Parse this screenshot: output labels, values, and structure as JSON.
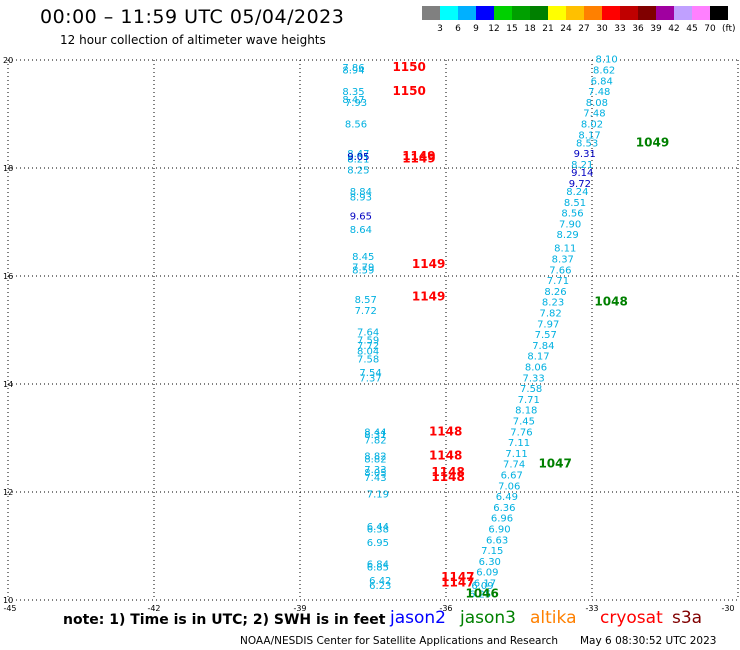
{
  "title": "00:00 – 11:59 UTC 05/04/2023",
  "subtitle": "12 hour collection of altimeter wave heights",
  "legend": {
    "labels": [
      "3",
      "6",
      "9",
      "12",
      "15",
      "18",
      "21",
      "24",
      "27",
      "30",
      "33",
      "36",
      "39",
      "42",
      "45",
      "70",
      "(ft)"
    ],
    "colors": [
      "#808080",
      "#00ffff",
      "#00b0ff",
      "#0000ff",
      "#00d000",
      "#00a000",
      "#008000",
      "#ffff00",
      "#ffc000",
      "#ff8000",
      "#ff0000",
      "#c00000",
      "#800000",
      "#a000a0",
      "#c0a0ff",
      "#ff80ff",
      "#000000"
    ]
  },
  "axes": {
    "x_ticks": [
      "-45",
      "-42",
      "-39",
      "-36",
      "-33",
      "-30"
    ],
    "y_ticks": [
      "10",
      "12",
      "14",
      "16",
      "18",
      "20"
    ]
  },
  "note": "note: 1) Time is in UTC; 2) SWH is in feet",
  "satellites": [
    {
      "name": "jason2",
      "color": "#0000ff"
    },
    {
      "name": "jason3",
      "color": "#008000"
    },
    {
      "name": "altika",
      "color": "#ff8000"
    },
    {
      "name": "cryosat",
      "color": "#ff0000"
    },
    {
      "name": "s3a",
      "color": "#800000"
    }
  ],
  "credit": "NOAA/NESDIS Center for Satellite Applications and Research",
  "generated": "May  6 08:30:52 UTC 2023",
  "tracks": {
    "west": {
      "color": "#00b0e0",
      "points": [
        {
          "lon": -37.9,
          "lat": 19.8,
          "v": "7.86"
        },
        {
          "lon": -37.9,
          "lat": 19.75,
          "v": "8.94"
        },
        {
          "lon": -37.9,
          "lat": 19.35,
          "v": "8.35"
        },
        {
          "lon": -37.9,
          "lat": 19.2,
          "v": "8.47"
        },
        {
          "lon": -37.85,
          "lat": 19.15,
          "v": "7.93"
        },
        {
          "lon": -37.85,
          "lat": 18.75,
          "v": "8.56"
        },
        {
          "lon": -37.8,
          "lat": 18.2,
          "v": "8.47"
        },
        {
          "lon": -37.8,
          "lat": 18.15,
          "v": "8.05"
        },
        {
          "lon": -37.8,
          "lat": 18.1,
          "v": "8.21"
        },
        {
          "lon": -37.8,
          "lat": 17.9,
          "v": "8.25"
        },
        {
          "lon": -37.75,
          "lat": 17.5,
          "v": "8.84"
        },
        {
          "lon": -37.75,
          "lat": 17.4,
          "v": "8.93"
        },
        {
          "lon": -37.75,
          "lat": 16.8,
          "v": "8.64"
        },
        {
          "lon": -37.7,
          "lat": 16.3,
          "v": "8.45"
        },
        {
          "lon": -37.7,
          "lat": 16.1,
          "v": "7.79"
        },
        {
          "lon": -37.7,
          "lat": 16.05,
          "v": "8.59"
        },
        {
          "lon": -37.65,
          "lat": 15.5,
          "v": "8.57"
        },
        {
          "lon": -37.65,
          "lat": 15.3,
          "v": "7.72"
        },
        {
          "lon": -37.6,
          "lat": 14.9,
          "v": "7.64"
        },
        {
          "lon": -37.6,
          "lat": 14.75,
          "v": "7.59"
        },
        {
          "lon": -37.6,
          "lat": 14.65,
          "v": "7.72"
        },
        {
          "lon": -37.6,
          "lat": 14.55,
          "v": "8.04"
        },
        {
          "lon": -37.6,
          "lat": 14.4,
          "v": "7.58"
        },
        {
          "lon": -37.55,
          "lat": 14.15,
          "v": "7.54"
        },
        {
          "lon": -37.55,
          "lat": 14.05,
          "v": "7.37"
        },
        {
          "lon": -37.45,
          "lat": 13.05,
          "v": "8.44"
        },
        {
          "lon": -37.45,
          "lat": 13.0,
          "v": "8.31"
        },
        {
          "lon": -37.45,
          "lat": 12.9,
          "v": "7.82"
        },
        {
          "lon": -37.45,
          "lat": 12.6,
          "v": "8.82"
        },
        {
          "lon": -37.45,
          "lat": 12.55,
          "v": "8.82"
        },
        {
          "lon": -37.45,
          "lat": 12.35,
          "v": "7.33"
        },
        {
          "lon": -37.45,
          "lat": 12.3,
          "v": "8.05"
        },
        {
          "lon": -37.45,
          "lat": 12.2,
          "v": "7.43"
        },
        {
          "lon": -37.4,
          "lat": 11.9,
          "v": "7.19"
        },
        {
          "lon": -37.4,
          "lat": 11.3,
          "v": "6.44"
        },
        {
          "lon": -37.4,
          "lat": 11.25,
          "v": "6.38"
        },
        {
          "lon": -37.4,
          "lat": 11.0,
          "v": "6.95"
        },
        {
          "lon": -37.4,
          "lat": 10.6,
          "v": "6.84"
        },
        {
          "lon": -37.4,
          "lat": 10.55,
          "v": "6.85"
        },
        {
          "lon": -37.35,
          "lat": 10.3,
          "v": "6.42"
        },
        {
          "lon": -37.35,
          "lat": 10.2,
          "v": "6.23"
        }
      ]
    },
    "east": {
      "color": "#00b0e0",
      "points": [
        {
          "lon": -32.7,
          "lat": 19.95,
          "v": "8.10"
        },
        {
          "lon": -32.75,
          "lat": 19.75,
          "v": "8.62"
        },
        {
          "lon": -32.8,
          "lat": 19.55,
          "v": "6.84"
        },
        {
          "lon": -32.85,
          "lat": 19.35,
          "v": "7.48"
        },
        {
          "lon": -32.9,
          "lat": 19.15,
          "v": "8.08"
        },
        {
          "lon": -32.95,
          "lat": 18.95,
          "v": "7.48"
        },
        {
          "lon": -33.0,
          "lat": 18.75,
          "v": "8.02"
        },
        {
          "lon": -33.05,
          "lat": 18.55,
          "v": "8.17"
        },
        {
          "lon": -33.1,
          "lat": 18.4,
          "v": "8.53"
        },
        {
          "lon": -33.2,
          "lat": 18.0,
          "v": "8.21"
        },
        {
          "lon": -33.3,
          "lat": 17.5,
          "v": "8.24"
        },
        {
          "lon": -33.35,
          "lat": 17.3,
          "v": "8.51"
        },
        {
          "lon": -33.4,
          "lat": 17.1,
          "v": "8.56"
        },
        {
          "lon": -33.45,
          "lat": 16.9,
          "v": "7.90"
        },
        {
          "lon": -33.5,
          "lat": 16.7,
          "v": "8.29"
        },
        {
          "lon": -33.55,
          "lat": 16.45,
          "v": "8.11"
        },
        {
          "lon": -33.6,
          "lat": 16.25,
          "v": "8.37"
        },
        {
          "lon": -33.65,
          "lat": 16.05,
          "v": "7.66"
        },
        {
          "lon": -33.7,
          "lat": 15.85,
          "v": "7.71"
        },
        {
          "lon": -33.75,
          "lat": 15.65,
          "v": "8.26"
        },
        {
          "lon": -33.8,
          "lat": 15.45,
          "v": "8.23"
        },
        {
          "lon": -33.85,
          "lat": 15.25,
          "v": "7.82"
        },
        {
          "lon": -33.9,
          "lat": 15.05,
          "v": "7.97"
        },
        {
          "lon": -33.95,
          "lat": 14.85,
          "v": "7.57"
        },
        {
          "lon": -34.0,
          "lat": 14.65,
          "v": "7.84"
        },
        {
          "lon": -34.1,
          "lat": 14.45,
          "v": "8.17"
        },
        {
          "lon": -34.15,
          "lat": 14.25,
          "v": "8.06"
        },
        {
          "lon": -34.2,
          "lat": 14.05,
          "v": "7.33"
        },
        {
          "lon": -34.25,
          "lat": 13.85,
          "v": "7.58"
        },
        {
          "lon": -34.3,
          "lat": 13.65,
          "v": "7.71"
        },
        {
          "lon": -34.35,
          "lat": 13.45,
          "v": "8.18"
        },
        {
          "lon": -34.4,
          "lat": 13.25,
          "v": "7.45"
        },
        {
          "lon": -34.45,
          "lat": 13.05,
          "v": "7.76"
        },
        {
          "lon": -34.5,
          "lat": 12.85,
          "v": "7.11"
        },
        {
          "lon": -34.55,
          "lat": 12.65,
          "v": "7.11"
        },
        {
          "lon": -34.6,
          "lat": 12.45,
          "v": "7.74"
        },
        {
          "lon": -34.65,
          "lat": 12.25,
          "v": "6.67"
        },
        {
          "lon": -34.7,
          "lat": 12.05,
          "v": "7.06"
        },
        {
          "lon": -34.75,
          "lat": 11.85,
          "v": "6.49"
        },
        {
          "lon": -34.8,
          "lat": 11.65,
          "v": "6.36"
        },
        {
          "lon": -34.85,
          "lat": 11.45,
          "v": "6.96"
        },
        {
          "lon": -34.9,
          "lat": 11.25,
          "v": "6.90"
        },
        {
          "lon": -34.95,
          "lat": 11.05,
          "v": "6.63"
        },
        {
          "lon": -35.05,
          "lat": 10.85,
          "v": "7.15"
        },
        {
          "lon": -35.1,
          "lat": 10.65,
          "v": "6.30"
        },
        {
          "lon": -35.15,
          "lat": 10.45,
          "v": "6.09"
        },
        {
          "lon": -35.2,
          "lat": 10.25,
          "v": "6.17"
        },
        {
          "lon": -35.25,
          "lat": 10.2,
          "v": "6.09"
        },
        {
          "lon": -35.3,
          "lat": 10.05,
          "v": "6.25"
        }
      ]
    },
    "highlights": {
      "color": "#0000c0",
      "points": [
        {
          "lon": -37.8,
          "lat": 18.15,
          "v": "9.05"
        },
        {
          "lon": -37.75,
          "lat": 17.05,
          "v": "9.65"
        },
        {
          "lon": -33.15,
          "lat": 18.2,
          "v": "9.31"
        },
        {
          "lon": -33.2,
          "lat": 17.85,
          "v": "9.14"
        },
        {
          "lon": -33.25,
          "lat": 17.65,
          "v": "9.72"
        }
      ]
    }
  },
  "times": [
    {
      "lon": -37.1,
      "lat": 19.8,
      "v": "1150",
      "color": "#ff0000"
    },
    {
      "lon": -37.1,
      "lat": 19.35,
      "v": "1150",
      "color": "#ff0000"
    },
    {
      "lon": -36.9,
      "lat": 18.15,
      "v": "1149",
      "color": "#ff0000"
    },
    {
      "lon": -36.9,
      "lat": 18.1,
      "v": "1149",
      "color": "#ff0000"
    },
    {
      "lon": -36.7,
      "lat": 16.15,
      "v": "1149",
      "color": "#ff0000"
    },
    {
      "lon": -36.7,
      "lat": 15.55,
      "v": "1149",
      "color": "#ff0000"
    },
    {
      "lon": -36.35,
      "lat": 13.05,
      "v": "1148",
      "color": "#ff0000"
    },
    {
      "lon": -36.35,
      "lat": 12.6,
      "v": "1148",
      "color": "#ff0000"
    },
    {
      "lon": -36.3,
      "lat": 12.3,
      "v": "1148",
      "color": "#ff0000"
    },
    {
      "lon": -36.3,
      "lat": 12.2,
      "v": "1148",
      "color": "#ff0000"
    },
    {
      "lon": -36.1,
      "lat": 10.35,
      "v": "1147",
      "color": "#ff0000"
    },
    {
      "lon": -36.1,
      "lat": 10.25,
      "v": "1147",
      "color": "#ff0000"
    },
    {
      "lon": -32.1,
      "lat": 18.4,
      "v": "1049",
      "color": "#008000"
    },
    {
      "lon": -32.95,
      "lat": 15.45,
      "v": "1048",
      "color": "#008000"
    },
    {
      "lon": -34.1,
      "lat": 12.45,
      "v": "1047",
      "color": "#008000"
    },
    {
      "lon": -35.6,
      "lat": 10.05,
      "v": "1046",
      "color": "#008000"
    }
  ]
}
